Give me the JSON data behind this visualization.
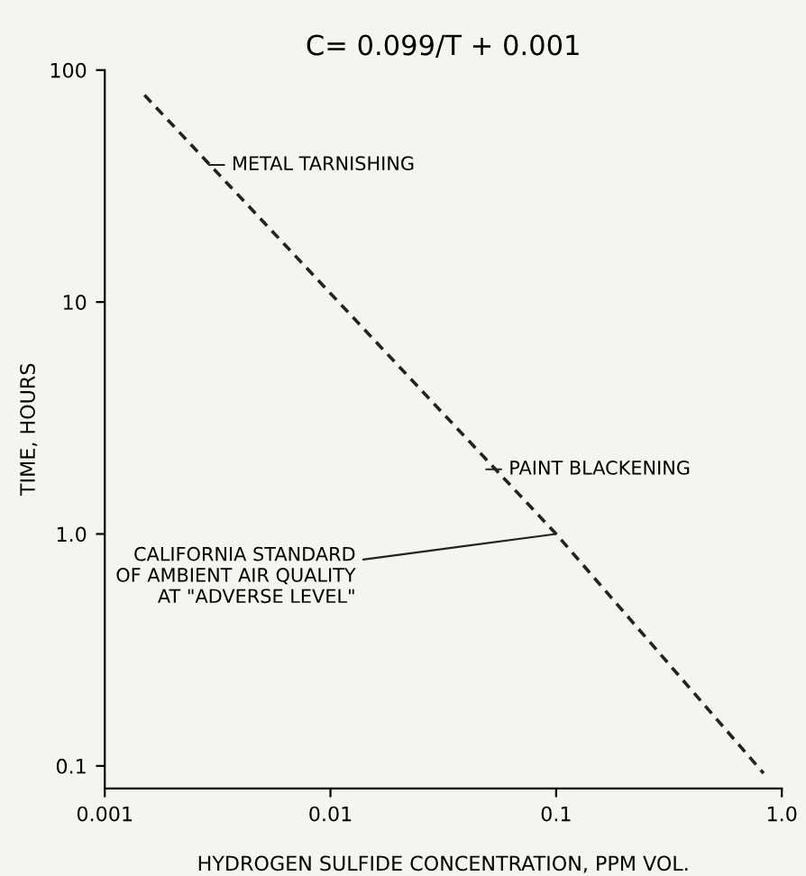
{
  "chart_data": {
    "type": "line",
    "title": "C= 0.099/T + 0.001",
    "xlabel": "HYDROGEN SULFIDE CONCENTRATION, PPM VOL.",
    "ylabel": "TIME, HOURS",
    "series": [
      {
        "x": [
          0.0015,
          0.1,
          0.83
        ],
        "values": [
          78,
          1.0,
          0.093
        ],
        "color": "#222222",
        "line_style": "dashed"
      }
    ],
    "log": "xy",
    "xlim": [
      0.001,
      1.0
    ],
    "ylim": [
      0.08,
      100
    ],
    "xticks": [
      0.001,
      0.01,
      0.1,
      {
        "value": 1.0,
        "label": "1.0"
      }
    ],
    "yticks": [
      0.1,
      {
        "value": 1.0,
        "label": "1.0"
      },
      10,
      100
    ],
    "grid": false,
    "annotations": [
      {
        "text": "METAL TARNISHING",
        "x": 0.0029,
        "y": 39
      },
      {
        "text": "PAINT BLACKENING",
        "x": 0.049,
        "y": 1.9
      },
      {
        "text": "CALIFORNIA STANDARD\nOF AMBIENT AIR QUALITY\nAT \"ADVERSE LEVEL\"",
        "x": 0.1,
        "y": 1.0
      }
    ]
  }
}
